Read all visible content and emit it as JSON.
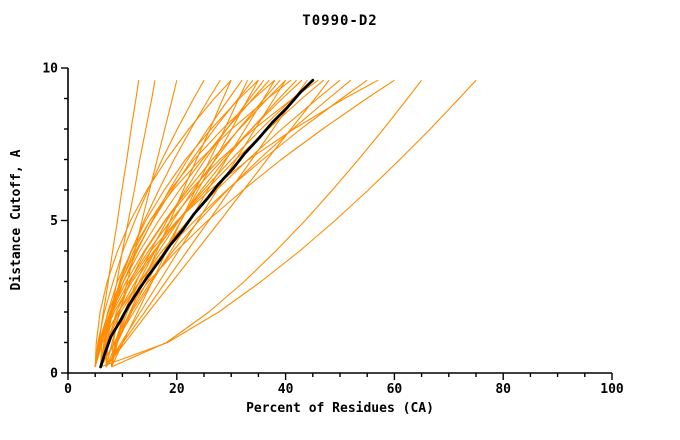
{
  "chart_data": {
    "type": "line",
    "title": "T0990-D2",
    "xlabel": "Percent of Residues (CA)",
    "ylabel": "Distance Cutoff, A",
    "xlim": [
      0,
      100
    ],
    "ylim": [
      0,
      10
    ],
    "x_major_ticks": [
      0,
      20,
      40,
      60,
      80,
      100
    ],
    "x_minor_step": 5,
    "y_major_ticks": [
      0,
      5,
      10
    ],
    "y_minor_step": 1,
    "grid": false,
    "legend": false,
    "colors": {
      "model_lines": "#ff8c00",
      "reference_line": "#000000",
      "axis": "#000000",
      "background": "#ffffff"
    },
    "series_y": [
      0.2,
      1,
      2,
      3,
      4,
      5,
      6,
      7,
      8,
      9,
      9.6
    ],
    "orange_series_x": [
      [
        5.0,
        5.7,
        6.5,
        7.4,
        8.2,
        9.1,
        9.9,
        10.8,
        11.6,
        12.5,
        13.0
      ],
      [
        6.0,
        6.9,
        7.9,
        9.0,
        10.0,
        11.1,
        12.2,
        13.2,
        14.3,
        15.4,
        16.0
      ],
      [
        5.0,
        5.5,
        6.7,
        8.3,
        10.1,
        12.3,
        14.7,
        17.3,
        20.1,
        23.1,
        25.0
      ],
      [
        6.0,
        6.6,
        7.8,
        9.6,
        11.7,
        14.0,
        16.7,
        19.5,
        22.6,
        25.9,
        28.0
      ],
      [
        7.0,
        9.0,
        11.4,
        13.9,
        16.3,
        18.8,
        21.2,
        23.6,
        26.1,
        28.5,
        30.0
      ],
      [
        5.0,
        5.2,
        5.9,
        7.2,
        9.1,
        11.5,
        14.5,
        18.1,
        22.2,
        26.9,
        30.0
      ],
      [
        6.0,
        6.7,
        8.2,
        10.2,
        12.7,
        15.5,
        18.6,
        22.0,
        25.7,
        29.6,
        32.0
      ],
      [
        8.0,
        10.1,
        12.8,
        15.5,
        18.1,
        20.8,
        23.4,
        26.1,
        28.8,
        31.4,
        33.0
      ],
      [
        5.0,
        5.7,
        7.4,
        9.7,
        12.5,
        15.6,
        19.1,
        22.8,
        26.9,
        31.3,
        34.0
      ],
      [
        7.0,
        7.2,
        8.0,
        9.5,
        11.6,
        14.3,
        17.7,
        21.6,
        26.3,
        31.5,
        35.0
      ],
      [
        6.0,
        8.5,
        11.5,
        14.6,
        17.7,
        20.8,
        23.9,
        27.0,
        30.1,
        33.1,
        35.0
      ],
      [
        8.0,
        8.7,
        10.4,
        12.6,
        15.2,
        18.2,
        21.6,
        25.2,
        29.2,
        33.4,
        36.0
      ],
      [
        5.0,
        5.8,
        7.7,
        10.2,
        13.2,
        16.7,
        20.5,
        24.7,
        29.2,
        34.0,
        37.0
      ],
      [
        7.0,
        7.2,
        8.1,
        9.8,
        12.1,
        15.1,
        18.8,
        23.2,
        28.4,
        34.2,
        38.0
      ],
      [
        6.0,
        8.7,
        12.1,
        15.5,
        18.9,
        22.4,
        25.7,
        29.1,
        32.6,
        36.0,
        38.0
      ],
      [
        8.0,
        8.8,
        10.6,
        13.1,
        16.0,
        19.3,
        23.0,
        27.1,
        31.4,
        36.1,
        39.0
      ],
      [
        5.0,
        5.9,
        7.9,
        10.7,
        14.0,
        17.8,
        22.0,
        26.5,
        31.5,
        36.7,
        40.0
      ],
      [
        7.0,
        9.8,
        13.3,
        16.8,
        20.3,
        23.9,
        27.4,
        30.9,
        34.4,
        37.9,
        40.0
      ],
      [
        6.0,
        6.2,
        7.3,
        9.1,
        11.7,
        15.1,
        19.3,
        24.3,
        30.1,
        36.7,
        41.0
      ],
      [
        8.0,
        8.9,
        10.9,
        13.5,
        16.7,
        20.4,
        24.5,
        28.9,
        33.7,
        38.8,
        42.0
      ],
      [
        5.0,
        6.0,
        8.2,
        11.2,
        14.8,
        18.9,
        23.4,
        28.4,
        33.7,
        39.4,
        43.0
      ],
      [
        7.0,
        10.1,
        14.1,
        18.0,
        21.9,
        25.9,
        29.8,
        33.8,
        37.7,
        41.6,
        44.0
      ],
      [
        6.0,
        7.0,
        9.3,
        12.4,
        16.0,
        20.2,
        24.9,
        30.0,
        35.5,
        41.3,
        45.0
      ],
      [
        8.0,
        8.3,
        9.4,
        11.4,
        14.2,
        17.9,
        22.5,
        27.9,
        34.2,
        41.3,
        46.0
      ],
      [
        5.0,
        6.1,
        8.5,
        11.8,
        15.8,
        20.3,
        25.4,
        30.8,
        36.8,
        43.0,
        47.0
      ],
      [
        7.0,
        10.5,
        14.8,
        19.2,
        23.6,
        28.0,
        32.3,
        36.6,
        41.0,
        45.4,
        48.0
      ],
      [
        6.0,
        7.1,
        9.7,
        13.2,
        17.3,
        22.1,
        27.3,
        33.1,
        39.3,
        45.9,
        50.0
      ],
      [
        8.0,
        9.1,
        11.7,
        15.2,
        19.3,
        24.1,
        29.3,
        35.1,
        41.3,
        47.9,
        52.0
      ],
      [
        5.0,
        6.3,
        9.2,
        13.2,
        17.9,
        23.3,
        29.2,
        35.8,
        42.8,
        50.3,
        55.0
      ],
      [
        7.0,
        7.4,
        8.9,
        11.5,
        15.2,
        20.1,
        26.1,
        33.2,
        41.5,
        50.8,
        57.0
      ],
      [
        6.0,
        7.4,
        10.5,
        14.8,
        19.9,
        25.7,
        32.2,
        39.2,
        46.8,
        54.9,
        60.0
      ],
      [
        8.0,
        18.1,
        25.9,
        32.4,
        38.2,
        43.6,
        48.6,
        53.4,
        58.0,
        62.4,
        65.0
      ],
      [
        6.0,
        18.3,
        27.7,
        35.5,
        42.6,
        49.1,
        55.2,
        61.0,
        66.6,
        71.9,
        75.0
      ],
      [
        7.0,
        8.1,
        9.5,
        10.9,
        12.3,
        13.6,
        15.0,
        16.4,
        17.8,
        19.2,
        20.0
      ]
    ],
    "black_series": {
      "y": [
        0.2,
        0.7,
        1.2,
        1.7,
        2.2,
        2.7,
        3.2,
        3.7,
        4.2,
        4.7,
        5.2,
        5.7,
        6.2,
        6.7,
        7.2,
        7.7,
        8.2,
        8.7,
        9.2,
        9.6
      ],
      "x": [
        6.0,
        6.9,
        7.9,
        9.6,
        11.1,
        12.9,
        14.8,
        16.9,
        18.8,
        21.1,
        23.1,
        25.5,
        27.7,
        30.3,
        32.5,
        35.1,
        37.5,
        40.3,
        42.7,
        45.0
      ]
    }
  }
}
